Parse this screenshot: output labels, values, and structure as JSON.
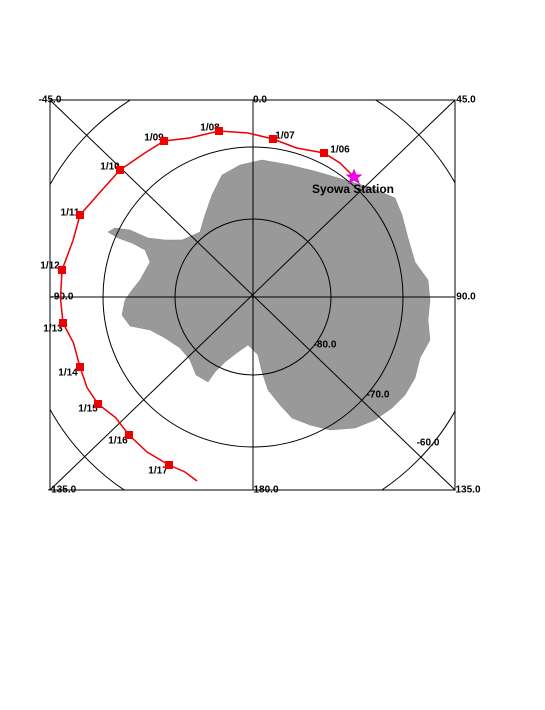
{
  "map": {
    "lon_labels": [
      "-45.0",
      "0.0",
      "45.0",
      "-90.0",
      "90.0",
      "-135.0",
      "180.0",
      "135.0"
    ],
    "lat_labels": [
      "-80.0",
      "-70.0",
      "-60.0"
    ],
    "station": "Syowa Station",
    "track_dates": [
      "1/06",
      "1/07",
      "1/08",
      "1/09",
      "1/10",
      "1/11",
      "1/12",
      "1/13",
      "1/14",
      "1/15",
      "1/16",
      "1/17"
    ]
  }
}
